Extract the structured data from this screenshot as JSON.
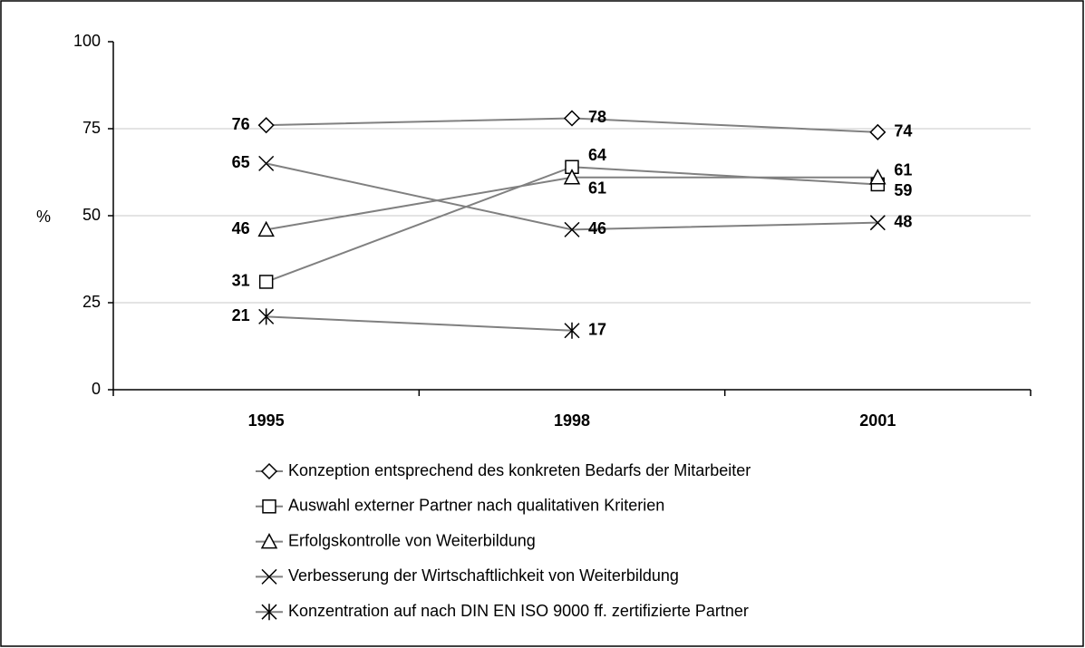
{
  "chart_data": {
    "type": "line",
    "ylabel": "%",
    "categories": [
      "1995",
      "1998",
      "2001"
    ],
    "series": [
      {
        "name": "Konzeption entsprechend des konkreten Bedarfs der Mitarbeiter",
        "color": "#808080",
        "marker": "diamond",
        "values": [
          76,
          78,
          74
        ]
      },
      {
        "name": "Auswahl externer Partner nach qualitativen Kriterien",
        "color": "#808080",
        "marker": "square",
        "values": [
          31,
          64,
          59
        ]
      },
      {
        "name": "Erfolgskontrolle von Weiterbildung",
        "color": "#808080",
        "marker": "triangle",
        "values": [
          46,
          61,
          61
        ]
      },
      {
        "name": "Verbesserung der Wirtschaftlichkeit von Weiterbildung",
        "color": "#808080",
        "marker": "x",
        "values": [
          65,
          46,
          48
        ]
      },
      {
        "name": "Konzentration auf nach DIN EN ISO 9000 ff. zertifizierte Partner",
        "color": "#808080",
        "marker": "asterisk",
        "values": [
          21,
          17,
          null
        ]
      }
    ],
    "ylim": [
      0,
      100
    ],
    "yticks": [
      0,
      25,
      50,
      75,
      100
    ],
    "grid": true
  }
}
